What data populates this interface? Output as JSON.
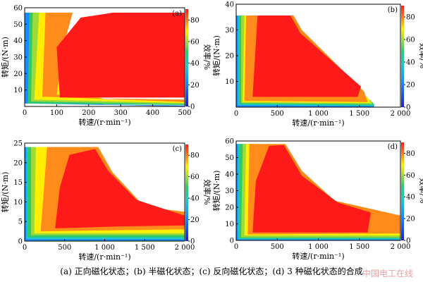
{
  "caption": "(a)  正向磁化状态；(b)  半磁化状态；(c)  反向磁化状态；(d) 3 种磁化状态的合成",
  "watermark": "中国电工在线",
  "colorbar": {
    "label": "效率/%",
    "ticks": [
      0,
      20,
      40,
      60,
      80
    ],
    "range": [
      0,
      90
    ]
  },
  "colors": {
    "eff_90": "#ff1a1a",
    "eff_80": "#ff8c1a",
    "eff_70": "#ffee00",
    "eff_60": "#9cdb3c",
    "eff_50": "#2fc96a",
    "eff_40": "#1ec8c8",
    "eff_30": "#1a8cff",
    "eff_0": "#2020c8"
  },
  "chart_data": [
    {
      "type": "heatmap",
      "panel_label": "(a)",
      "xlabel": "转速/(r·min⁻¹)",
      "ylabel": "转矩/(N·m)",
      "xlim": [
        0,
        500
      ],
      "ylim": [
        0,
        60
      ],
      "xticks": [
        0,
        100,
        200,
        300,
        400,
        500
      ],
      "yticks": [
        10,
        20,
        30,
        40,
        50,
        60
      ],
      "x_tick_labels": [
        "0",
        "100",
        "200",
        "300",
        "400",
        "500"
      ],
      "y_tick_labels": [
        "10",
        "20",
        "30",
        "40",
        "50",
        "60"
      ],
      "max_torque": 57,
      "efficiency_range_pct": [
        0,
        90
      ],
      "high_efficiency_region": "x 100–500 r/min, y 5–57 N·m"
    },
    {
      "type": "heatmap",
      "panel_label": "(b)",
      "xlabel": "转速/(r·min⁻¹)",
      "ylabel": "转矩/(N·m)",
      "xlim": [
        0,
        2000
      ],
      "ylim": [
        0,
        40
      ],
      "xticks": [
        0,
        500,
        1000,
        1500,
        2000
      ],
      "yticks": [
        10,
        20,
        30,
        40
      ],
      "x_tick_labels": [
        "0",
        "500",
        "1 000",
        "1 500",
        "2 000"
      ],
      "y_tick_labels": [
        "10",
        "20",
        "30",
        "40"
      ],
      "max_torque": 36,
      "max_speed": 1680,
      "efficiency_range_pct": [
        0,
        90
      ],
      "high_efficiency_region": "x 200–1550 r/min, y 3–36 N·m"
    },
    {
      "type": "heatmap",
      "panel_label": "(c)",
      "xlabel": "转速/(r·min⁻¹)",
      "ylabel": "转矩/(N·m)",
      "xlim": [
        0,
        2000
      ],
      "ylim": [
        0,
        25
      ],
      "xticks": [
        0,
        500,
        1000,
        1500,
        2000
      ],
      "yticks": [
        0,
        5,
        10,
        15,
        20,
        25
      ],
      "x_tick_labels": [
        "0",
        "500",
        "1 000",
        "1 500",
        "2 000"
      ],
      "y_tick_labels": [
        "0",
        "5",
        "10",
        "15",
        "20",
        "25"
      ],
      "max_torque": 24,
      "efficiency_range_pct": [
        0,
        90
      ],
      "high_efficiency_region": "x 400–2000 r/min, y 3–24 N·m"
    },
    {
      "type": "heatmap",
      "panel_label": "(d)",
      "xlabel": "转速/(r·min⁻¹)",
      "ylabel": "转矩/(N·m)",
      "xlim": [
        0,
        2000
      ],
      "ylim": [
        0,
        60
      ],
      "xticks": [
        0,
        500,
        1000,
        1500,
        2000
      ],
      "yticks": [
        0,
        10,
        20,
        30,
        40,
        50,
        60
      ],
      "x_tick_labels": [
        "0",
        "500",
        "1 000",
        "1 500",
        "2 000"
      ],
      "y_tick_labels": [
        "0",
        "10",
        "20",
        "30",
        "40",
        "50",
        "60"
      ],
      "max_torque": 58,
      "efficiency_range_pct": [
        0,
        90
      ],
      "high_efficiency_region": "x 200–1650 r/min, y 5–58 N·m"
    }
  ]
}
